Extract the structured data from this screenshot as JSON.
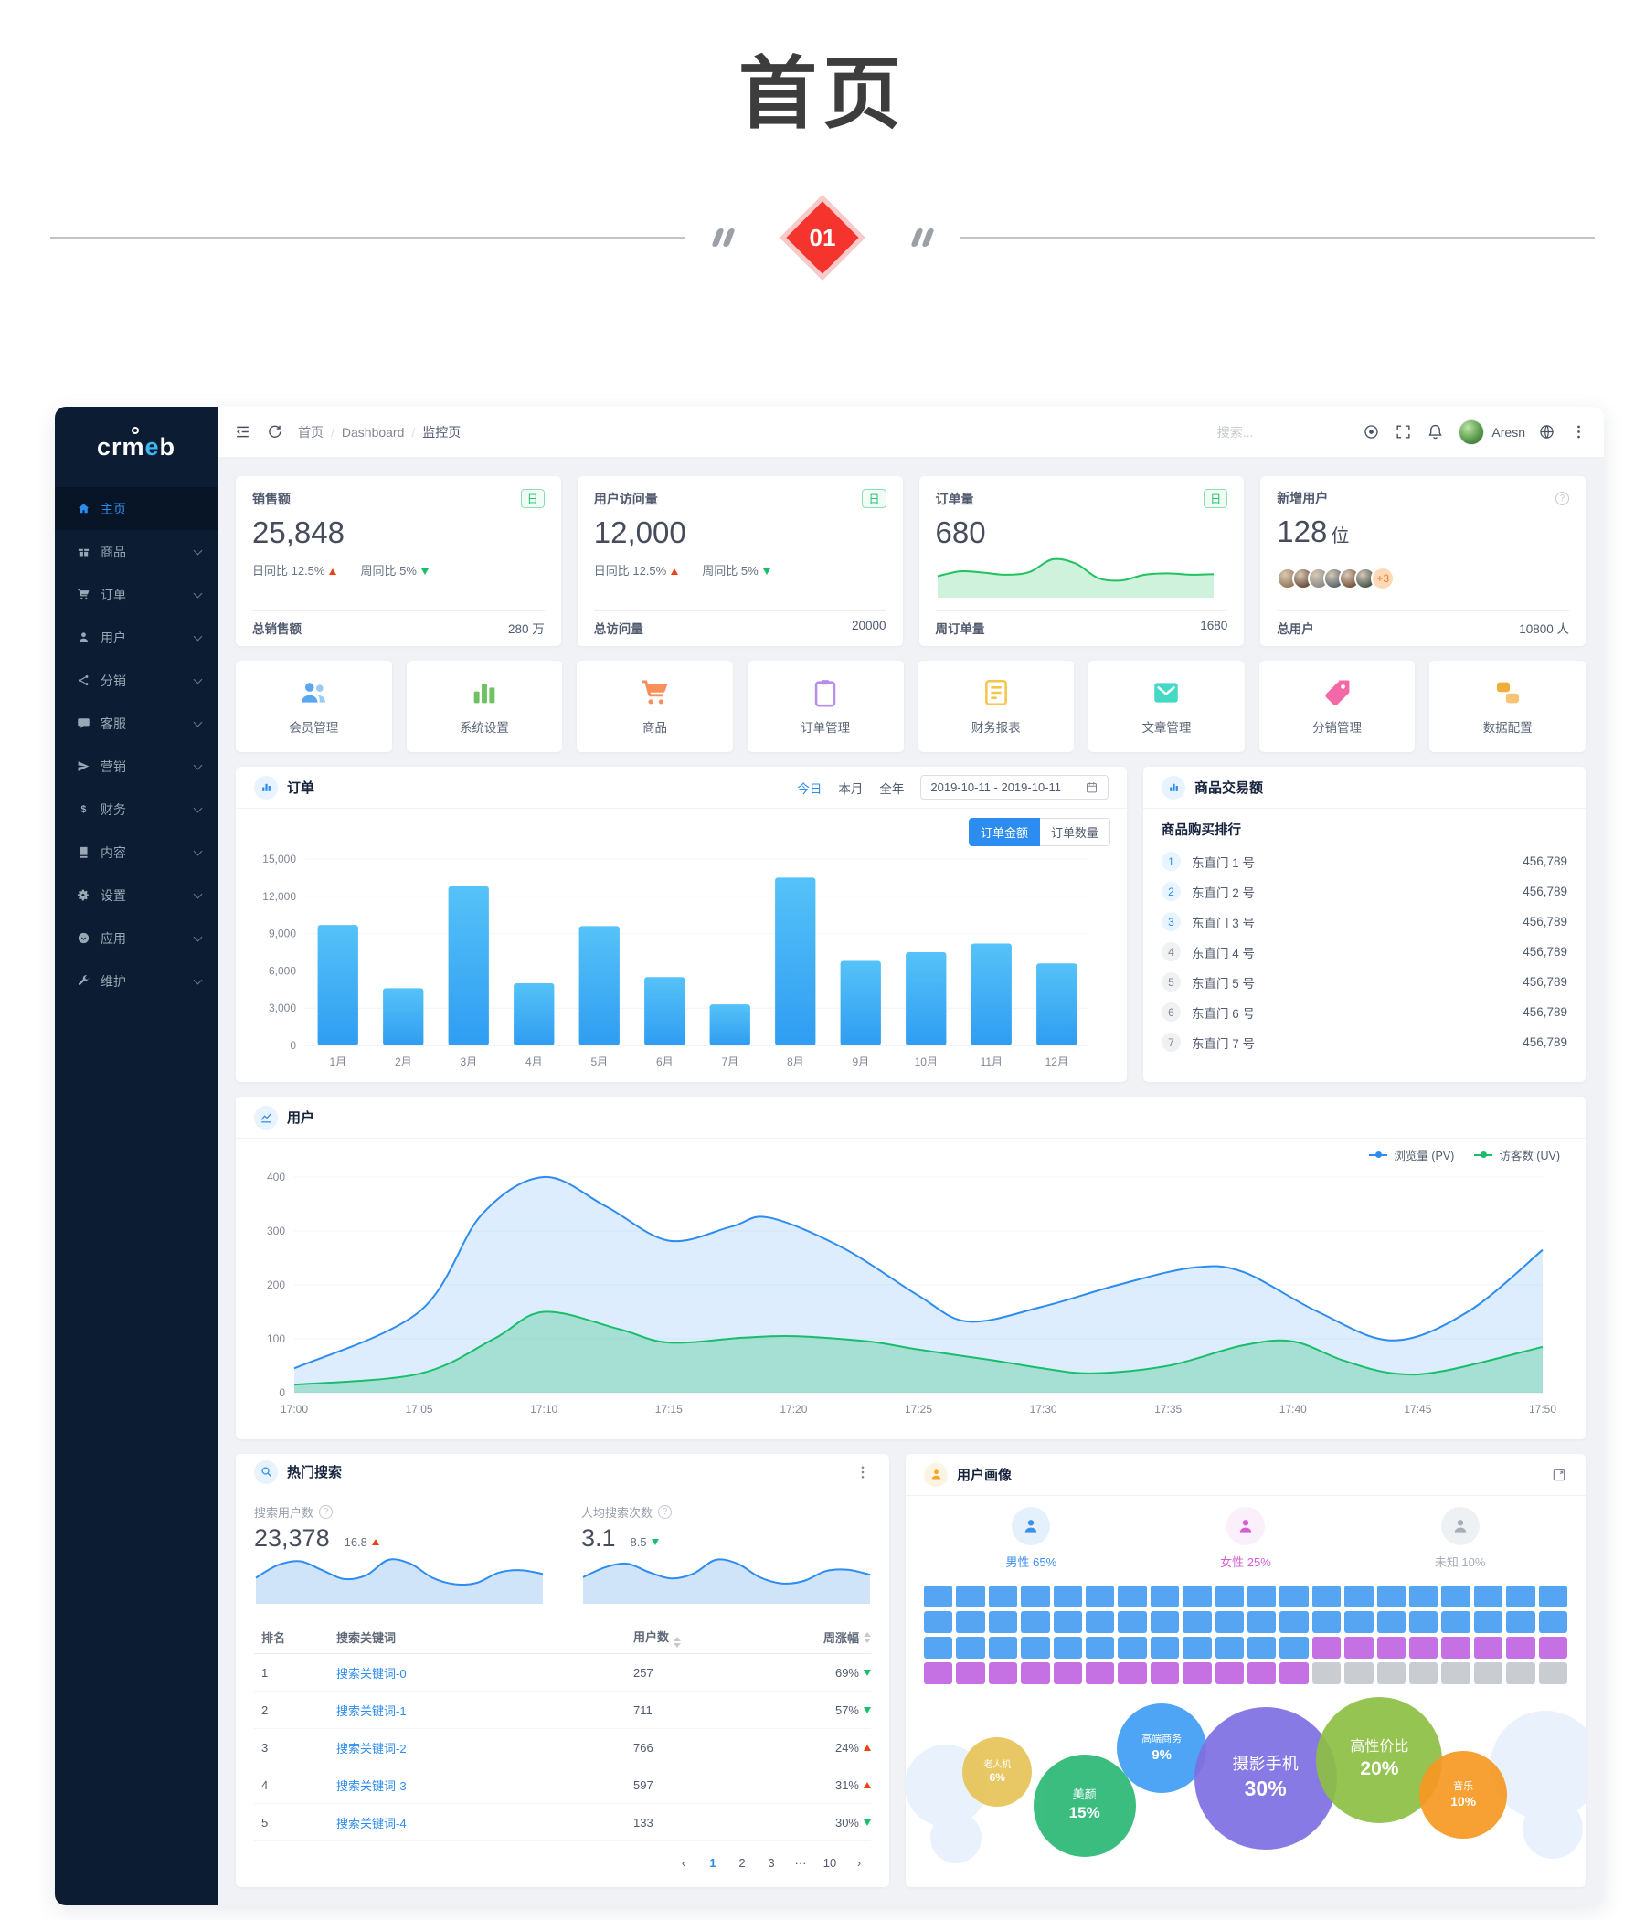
{
  "page": {
    "title": "首页",
    "section_number": "01"
  },
  "sidebar": {
    "logo_prefix": "cr",
    "logo_m": "m",
    "logo_accent": "e",
    "logo_suffix": "b",
    "items": [
      {
        "label": "主页",
        "icon": "home",
        "active": true,
        "chevron": false
      },
      {
        "label": "商品",
        "icon": "goods",
        "active": false,
        "chevron": true
      },
      {
        "label": "订单",
        "icon": "cart",
        "active": false,
        "chevron": true
      },
      {
        "label": "用户",
        "icon": "user",
        "active": false,
        "chevron": true
      },
      {
        "label": "分销",
        "icon": "share",
        "active": false,
        "chevron": true
      },
      {
        "label": "客服",
        "icon": "chat",
        "active": false,
        "chevron": true
      },
      {
        "label": "营销",
        "icon": "send",
        "active": false,
        "chevron": true
      },
      {
        "label": "财务",
        "icon": "dollar",
        "active": false,
        "chevron": true
      },
      {
        "label": "内容",
        "icon": "book",
        "active": false,
        "chevron": true
      },
      {
        "label": "设置",
        "icon": "gear",
        "active": false,
        "chevron": true
      },
      {
        "label": "应用",
        "icon": "apps",
        "active": false,
        "chevron": true
      },
      {
        "label": "维护",
        "icon": "wrench",
        "active": false,
        "chevron": true
      }
    ]
  },
  "navbar": {
    "breadcrumb": [
      "首页",
      "Dashboard",
      "监控页"
    ],
    "search_placeholder": "搜索...",
    "username": "Aresn"
  },
  "stat_cards": [
    {
      "title": "销售额",
      "badge": "日",
      "value": "25,848",
      "unit": "",
      "day": "日同比 12.5%",
      "week": "周同比 5%",
      "footer_label": "总销售额",
      "footer_value": "280 万"
    },
    {
      "title": "用户访问量",
      "badge": "日",
      "value": "12,000",
      "unit": "",
      "day": "日同比 12.5%",
      "week": "周同比 5%",
      "footer_label": "总访问量",
      "footer_value": "20000"
    },
    {
      "title": "订单量",
      "badge": "日",
      "value": "680",
      "unit": "",
      "footer_label": "周订单量",
      "footer_value": "1680",
      "sparkline": [
        28,
        35,
        33,
        30,
        34,
        52,
        46,
        25,
        22,
        30,
        32,
        30,
        31
      ]
    },
    {
      "title": "新增用户",
      "value": "128",
      "unit": "位",
      "extra_badge": "+3",
      "avatar_colors": [
        "#9a7b5f",
        "#6e5340",
        "#8d8d8d",
        "#5d6b75",
        "#7b5a44",
        "#4e5e54"
      ],
      "footer_label": "总用户",
      "footer_value": "10800 人"
    }
  ],
  "quick_actions": [
    {
      "label": "会员管理",
      "icon": "members",
      "color": "#58a7f2"
    },
    {
      "label": "系统设置",
      "icon": "bars",
      "color": "#6fc263"
    },
    {
      "label": "商品",
      "icon": "cart2",
      "color": "#fa8f5c"
    },
    {
      "label": "订单管理",
      "icon": "clipboard",
      "color": "#b78ceb"
    },
    {
      "label": "财务报表",
      "icon": "report",
      "color": "#f3c74a"
    },
    {
      "label": "文章管理",
      "icon": "mail",
      "color": "#43d9c4"
    },
    {
      "label": "分销管理",
      "icon": "tag",
      "color": "#f468a8"
    },
    {
      "label": "数据配置",
      "icon": "data",
      "color": "#f2ae3d"
    }
  ],
  "order_panel": {
    "title": "订单",
    "filters": [
      {
        "label": "今日",
        "active": true
      },
      {
        "label": "本月",
        "active": false
      },
      {
        "label": "全年",
        "active": false
      }
    ],
    "date_range": "2019-10-11 - 2019-10-11",
    "tabs": [
      {
        "label": "订单金额",
        "active": true
      },
      {
        "label": "订单数量",
        "active": false
      }
    ],
    "chart_data": {
      "type": "bar",
      "categories": [
        "1月",
        "2月",
        "3月",
        "4月",
        "5月",
        "6月",
        "7月",
        "8月",
        "9月",
        "10月",
        "11月",
        "12月"
      ],
      "values": [
        9700,
        4600,
        12800,
        5000,
        9600,
        5500,
        3300,
        13500,
        6800,
        7500,
        8200,
        6600
      ],
      "ylim": [
        0,
        15000
      ],
      "yticks": [
        "0",
        "3,000",
        "6,000",
        "9,000",
        "12,000",
        "15,000"
      ],
      "bar_color_top": "#55c2f8",
      "bar_color_bottom": "#2f9df1"
    }
  },
  "rank_panel": {
    "title": "商品交易额",
    "subtitle": "商品购买排行",
    "items": [
      {
        "rank": "1",
        "name": "东直门 1 号",
        "value": "456,789"
      },
      {
        "rank": "2",
        "name": "东直门 2 号",
        "value": "456,789"
      },
      {
        "rank": "3",
        "name": "东直门 3 号",
        "value": "456,789"
      },
      {
        "rank": "4",
        "name": "东直门 4 号",
        "value": "456,789"
      },
      {
        "rank": "5",
        "name": "东直门 5 号",
        "value": "456,789"
      },
      {
        "rank": "6",
        "name": "东直门 6 号",
        "value": "456,789"
      },
      {
        "rank": "7",
        "name": "东直门 7 号",
        "value": "456,789"
      }
    ]
  },
  "user_panel": {
    "title": "用户",
    "legend": [
      {
        "label": "浏览量 (PV)",
        "color": "#2d8cf0"
      },
      {
        "label": "访客数 (UV)",
        "color": "#19be6b"
      }
    ],
    "chart_data": {
      "type": "area",
      "x_ticks": [
        "17:00",
        "17:05",
        "17:10",
        "17:15",
        "17:20",
        "17:25",
        "17:30",
        "17:35",
        "17:40",
        "17:45",
        "17:50"
      ],
      "xlim": [
        0,
        50
      ],
      "ylim": [
        0,
        400
      ],
      "yticks": [
        "0",
        "100",
        "200",
        "300",
        "400"
      ],
      "series": [
        {
          "name": "浏览量 (PV)",
          "color": "#2d8cf0",
          "fill": "rgba(45,140,240,0.16)",
          "x": [
            0,
            5,
            7.5,
            10,
            12.5,
            15,
            17.5,
            19,
            22,
            25,
            27,
            30,
            33,
            36,
            38,
            41,
            44,
            47,
            50
          ],
          "values": [
            45,
            150,
            330,
            400,
            345,
            282,
            308,
            325,
            268,
            180,
            132,
            160,
            200,
            232,
            224,
            150,
            97,
            150,
            265
          ]
        },
        {
          "name": "访客数 (UV)",
          "color": "#19be6b",
          "fill": "rgba(25,190,107,0.28)",
          "x": [
            0,
            5,
            8,
            10,
            13,
            15,
            18,
            20,
            23,
            25,
            28,
            30,
            32,
            35,
            38,
            40,
            42,
            44,
            46,
            50
          ],
          "values": [
            15,
            35,
            100,
            150,
            118,
            93,
            102,
            105,
            95,
            80,
            60,
            45,
            36,
            50,
            88,
            95,
            60,
            36,
            40,
            85
          ]
        }
      ]
    }
  },
  "hot_search": {
    "title": "热门搜索",
    "stats": [
      {
        "label": "搜索用户数",
        "value": "23,378",
        "delta": "16.8",
        "trend": "up",
        "sparkline": [
          38,
          58,
          64,
          50,
          36,
          42,
          66,
          60,
          38,
          28,
          30,
          46,
          50,
          44
        ]
      },
      {
        "label": "人均搜索次数",
        "value": "3.1",
        "delta": "8.5",
        "trend": "down",
        "sparkline": [
          40,
          56,
          62,
          48,
          38,
          46,
          68,
          62,
          40,
          30,
          34,
          50,
          52,
          44
        ]
      }
    ],
    "table": {
      "headers": [
        "排名",
        "搜索关键词",
        "用户数",
        "周涨幅"
      ],
      "rows": [
        {
          "rank": "1",
          "keyword": "搜索关键词-0",
          "users": "257",
          "change": "69%",
          "trend": "down"
        },
        {
          "rank": "2",
          "keyword": "搜索关键词-1",
          "users": "711",
          "change": "57%",
          "trend": "down"
        },
        {
          "rank": "3",
          "keyword": "搜索关键词-2",
          "users": "766",
          "change": "24%",
          "trend": "up"
        },
        {
          "rank": "4",
          "keyword": "搜索关键词-3",
          "users": "597",
          "change": "31%",
          "trend": "up"
        },
        {
          "rank": "5",
          "keyword": "搜索关键词-4",
          "users": "133",
          "change": "30%",
          "trend": "down"
        }
      ]
    },
    "pagination": [
      {
        "label": "‹",
        "active": false
      },
      {
        "label": "1",
        "active": true
      },
      {
        "label": "2",
        "active": false
      },
      {
        "label": "3",
        "active": false
      },
      {
        "label": "···",
        "active": false
      },
      {
        "label": "10",
        "active": false
      },
      {
        "label": "›",
        "active": false
      }
    ]
  },
  "user_profile": {
    "title": "用户画像",
    "genders": [
      {
        "label": "男性 65%",
        "color": "#3c90ee",
        "bg": "#e4f1fd"
      },
      {
        "label": "女性 25%",
        "color": "#d45fd3",
        "bg": "#fbeffb"
      },
      {
        "label": "未知 10%",
        "color": "#a6aeb8",
        "bg": "#eef1f4"
      }
    ],
    "waffle": {
      "cols": 20,
      "rows": 4,
      "segments": [
        {
          "color": "#55a5f3",
          "count": 52
        },
        {
          "color": "#c571e3",
          "count": 20
        },
        {
          "color": "#c9cdd2",
          "count": 8
        }
      ]
    },
    "bubbles": [
      {
        "label": "老人机",
        "pct": "6%",
        "color": "#e7c458",
        "x": 6,
        "y": 26,
        "d": 76
      },
      {
        "label": "美颜",
        "pct": "15%",
        "color": "#2bb876",
        "x": 17,
        "y": 36,
        "d": 112
      },
      {
        "label": "高端商务",
        "pct": "9%",
        "color": "#3f9ef5",
        "x": 30,
        "y": 6,
        "d": 98
      },
      {
        "label": "摄影手机",
        "pct": "30%",
        "color": "#7e6fe2",
        "x": 42,
        "y": 8,
        "d": 156
      },
      {
        "label": "高性价比",
        "pct": "20%",
        "color": "#8ec044",
        "x": 61,
        "y": 2,
        "d": 138
      },
      {
        "label": "音乐",
        "pct": "10%",
        "color": "#f79822",
        "x": 77,
        "y": 34,
        "d": 96
      }
    ]
  }
}
